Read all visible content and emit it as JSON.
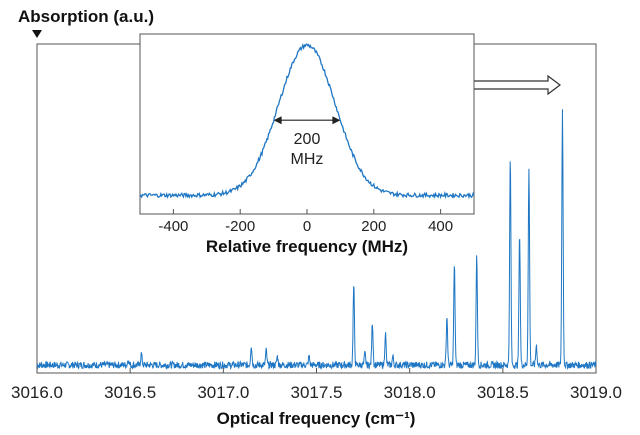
{
  "chart_data": [
    {
      "type": "line",
      "xlabel": "Optical frequency (cm⁻¹)",
      "ylabel": "Absorption (a.u.)",
      "xlim": [
        3016.0,
        3019.0
      ],
      "ylim": [
        0,
        1.0
      ],
      "xticks": [
        "3016.0",
        "3016.5",
        "3017.0",
        "3017.5",
        "3018.0",
        "3018.5",
        "3019.0"
      ],
      "grid": false,
      "line_color": "#1f77c4",
      "baseline": 0.0,
      "noise": 0.012,
      "peaks": [
        {
          "x": 3016.49,
          "y": 0.02
        },
        {
          "x": 3016.56,
          "y": 0.04
        },
        {
          "x": 3017.15,
          "y": 0.07
        },
        {
          "x": 3017.23,
          "y": 0.05
        },
        {
          "x": 3017.29,
          "y": 0.03
        },
        {
          "x": 3017.46,
          "y": 0.03
        },
        {
          "x": 3017.7,
          "y": 0.28
        },
        {
          "x": 3017.76,
          "y": 0.04
        },
        {
          "x": 3017.8,
          "y": 0.15
        },
        {
          "x": 3017.87,
          "y": 0.11
        },
        {
          "x": 3017.91,
          "y": 0.03
        },
        {
          "x": 3018.2,
          "y": 0.17
        },
        {
          "x": 3018.24,
          "y": 0.35
        },
        {
          "x": 3018.36,
          "y": 0.38
        },
        {
          "x": 3018.54,
          "y": 0.72
        },
        {
          "x": 3018.59,
          "y": 0.46
        },
        {
          "x": 3018.64,
          "y": 0.68
        },
        {
          "x": 3018.68,
          "y": 0.07
        },
        {
          "x": 3018.82,
          "y": 0.89
        }
      ]
    },
    {
      "type": "line",
      "xlabel": "Relative frequency (MHz)",
      "xlim": [
        -500,
        500
      ],
      "ylim": [
        0,
        1.0
      ],
      "xticks": [
        "-400",
        "-200",
        "0",
        "200",
        "400"
      ],
      "profile": "gaussian",
      "center": 0,
      "fwhm": 200,
      "amplitude": 0.95,
      "baseline": 0.03,
      "annotation": {
        "value": "200",
        "unit": "MHz"
      },
      "line_color": "#1f77c4"
    }
  ]
}
